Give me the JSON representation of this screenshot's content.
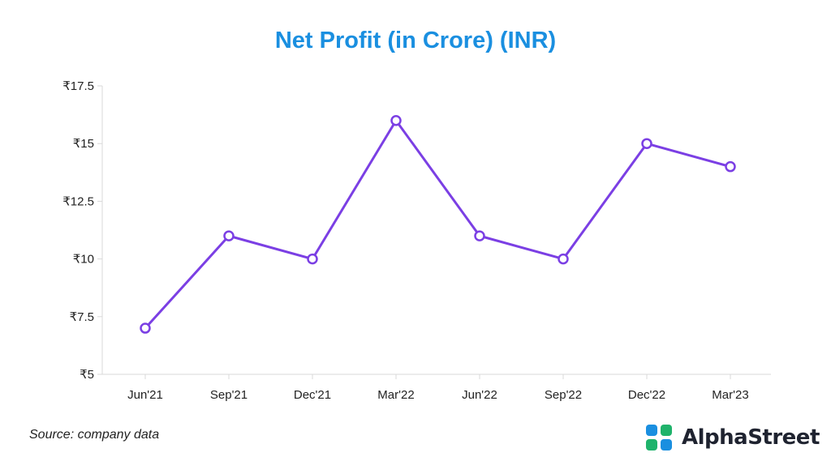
{
  "chart_data": {
    "type": "line",
    "title": "Net Profit (in Crore) (INR)",
    "categories": [
      "Jun'21",
      "Sep'21",
      "Dec'21",
      "Mar'22",
      "Jun'22",
      "Sep'22",
      "Dec'22",
      "Mar'23"
    ],
    "series": [
      {
        "values": [
          7,
          11,
          10,
          16,
          11,
          10,
          15,
          14
        ],
        "color": "#7b3fe4"
      }
    ],
    "ylim": [
      5,
      17.5
    ],
    "yticks": [
      5,
      7.5,
      10,
      12.5,
      15,
      17.5
    ],
    "ytick_labels": [
      "₹5",
      "₹7.5",
      "₹10",
      "₹12.5",
      "₹15",
      "₹17.5"
    ],
    "grid": false,
    "xlabel": "",
    "ylabel": ""
  },
  "footer": {
    "source": "Source: company data",
    "brand": "AlphaStreet"
  },
  "colors": {
    "title": "#1a8fe0",
    "line": "#7b3fe4",
    "axis": "#d9d9d9",
    "logo_blue": "#1a8fe0",
    "logo_green": "#1fb36b"
  }
}
